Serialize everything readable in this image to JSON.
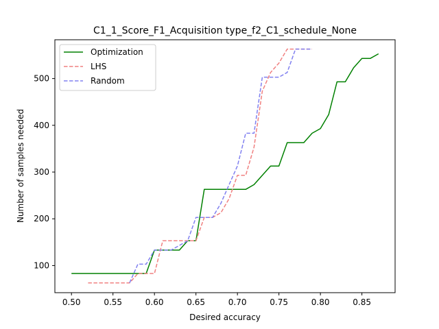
{
  "chart_data": {
    "type": "line",
    "title": "C1_1_Score_F1_Acquisition type_f2_C1_schedule_None",
    "xlabel": "Desired accuracy",
    "ylabel": "Number of samples needed",
    "xlim": [
      0.48,
      0.89
    ],
    "ylim": [
      42,
      583
    ],
    "xticks": [
      0.5,
      0.55,
      0.6,
      0.65,
      0.7,
      0.75,
      0.8,
      0.85
    ],
    "xtick_labels": [
      "0.50",
      "0.55",
      "0.60",
      "0.65",
      "0.70",
      "0.75",
      "0.80",
      "0.85"
    ],
    "yticks": [
      100,
      200,
      300,
      400,
      500
    ],
    "ytick_labels": [
      "100",
      "200",
      "300",
      "400",
      "500"
    ],
    "grid": false,
    "legend_position": "top-left",
    "series": [
      {
        "name": "Optimization",
        "color": "#008000",
        "style": "solid",
        "x": [
          0.5,
          0.51,
          0.52,
          0.53,
          0.54,
          0.55,
          0.56,
          0.57,
          0.58,
          0.59,
          0.6,
          0.61,
          0.62,
          0.63,
          0.64,
          0.65,
          0.66,
          0.67,
          0.68,
          0.69,
          0.7,
          0.71,
          0.72,
          0.73,
          0.74,
          0.75,
          0.76,
          0.77,
          0.78,
          0.79,
          0.8,
          0.81,
          0.82,
          0.83,
          0.84,
          0.85,
          0.86,
          0.87
        ],
        "y": [
          83,
          83,
          83,
          83,
          83,
          83,
          83,
          83,
          83,
          83,
          133,
          133,
          133,
          133,
          153,
          153,
          263,
          263,
          263,
          263,
          263,
          263,
          273,
          293,
          313,
          313,
          363,
          363,
          363,
          383,
          393,
          423,
          493,
          493,
          523,
          543,
          543,
          553
        ]
      },
      {
        "name": "LHS",
        "color": "#f08080",
        "style": "dashed",
        "x": [
          0.52,
          0.53,
          0.54,
          0.55,
          0.56,
          0.57,
          0.58,
          0.59,
          0.6,
          0.61,
          0.62,
          0.63,
          0.64,
          0.65,
          0.66,
          0.67,
          0.68,
          0.69,
          0.7,
          0.71,
          0.72,
          0.73,
          0.74,
          0.75,
          0.76,
          0.77,
          0.78,
          0.79
        ],
        "y": [
          63,
          63,
          63,
          63,
          63,
          63,
          83,
          83,
          83,
          153,
          153,
          153,
          153,
          153,
          203,
          203,
          213,
          243,
          293,
          293,
          353,
          473,
          513,
          533,
          563,
          563,
          563,
          563
        ]
      },
      {
        "name": "Random",
        "color": "#8080f0",
        "style": "dashed",
        "x": [
          0.57,
          0.58,
          0.59,
          0.6,
          0.61,
          0.62,
          0.63,
          0.64,
          0.65,
          0.66,
          0.67,
          0.68,
          0.69,
          0.7,
          0.71,
          0.72,
          0.73,
          0.74,
          0.75,
          0.76,
          0.77,
          0.78,
          0.79
        ],
        "y": [
          63,
          103,
          103,
          133,
          133,
          133,
          143,
          153,
          203,
          203,
          203,
          233,
          273,
          313,
          383,
          383,
          503,
          503,
          503,
          513,
          563,
          563,
          563
        ]
      }
    ]
  }
}
